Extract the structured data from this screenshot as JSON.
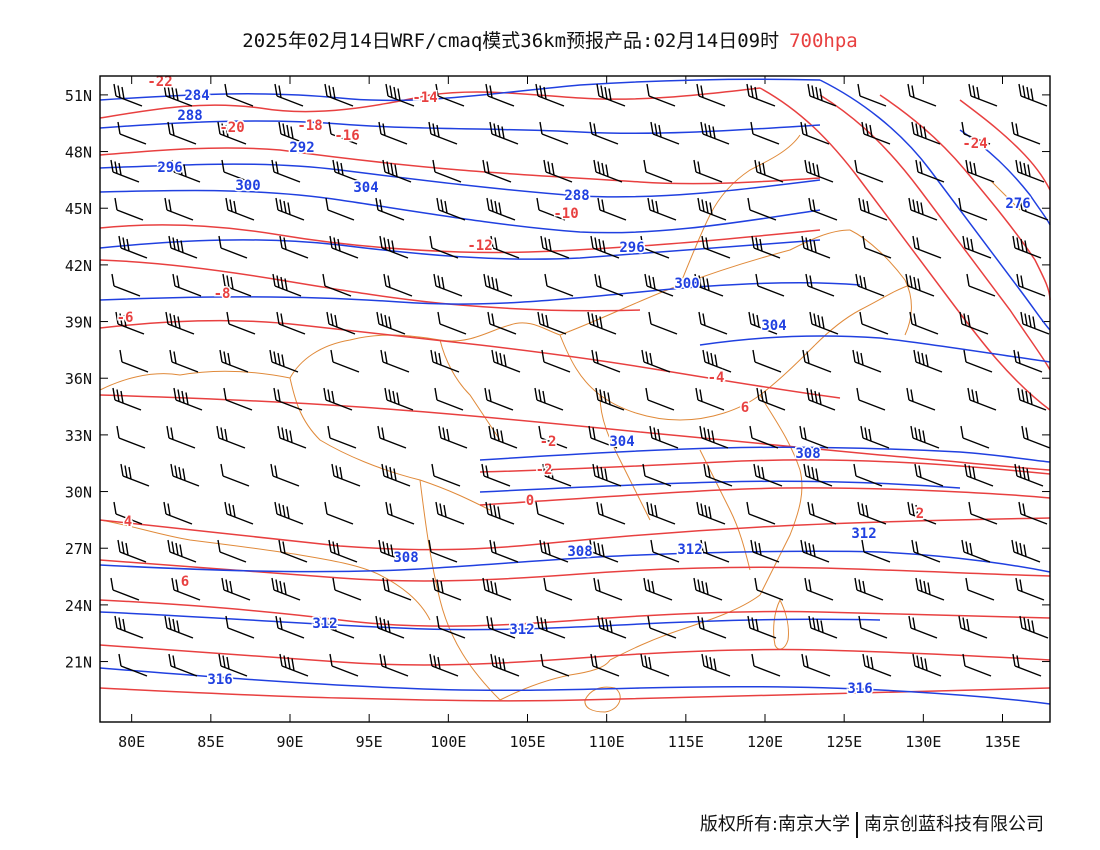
{
  "title": {
    "main": "2025年02月14日WRF/cmaq模式36km预报产品:02月14日09时",
    "level": "700hpa"
  },
  "colors": {
    "temperature": "#e84040",
    "geopotential": "#2040e0",
    "border": "#e08a3a",
    "wind": "#000000"
  },
  "axes": {
    "lat_ticks": [
      "51N",
      "48N",
      "45N",
      "42N",
      "39N",
      "36N",
      "33N",
      "30N",
      "27N",
      "24N",
      "21N"
    ],
    "lon_ticks": [
      "80E",
      "85E",
      "90E",
      "95E",
      "100E",
      "105E",
      "110E",
      "115E",
      "120E",
      "125E",
      "130E",
      "135E"
    ],
    "lon_range": [
      78,
      138
    ],
    "lat_range": [
      17.8,
      52
    ]
  },
  "temperature_labels": [
    "-22",
    "-20",
    "-18",
    "-16",
    "-14",
    "-12",
    "-10",
    "-8",
    "-6",
    "-4",
    "-2",
    "0",
    "2",
    "4",
    "6",
    "8",
    "-24"
  ],
  "geopotential_labels": [
    "284",
    "288",
    "292",
    "296",
    "300",
    "304",
    "308",
    "312",
    "316",
    "276"
  ],
  "footer": {
    "left": "版权所有:南京大学",
    "right": "南京创蓝科技有限公司"
  }
}
